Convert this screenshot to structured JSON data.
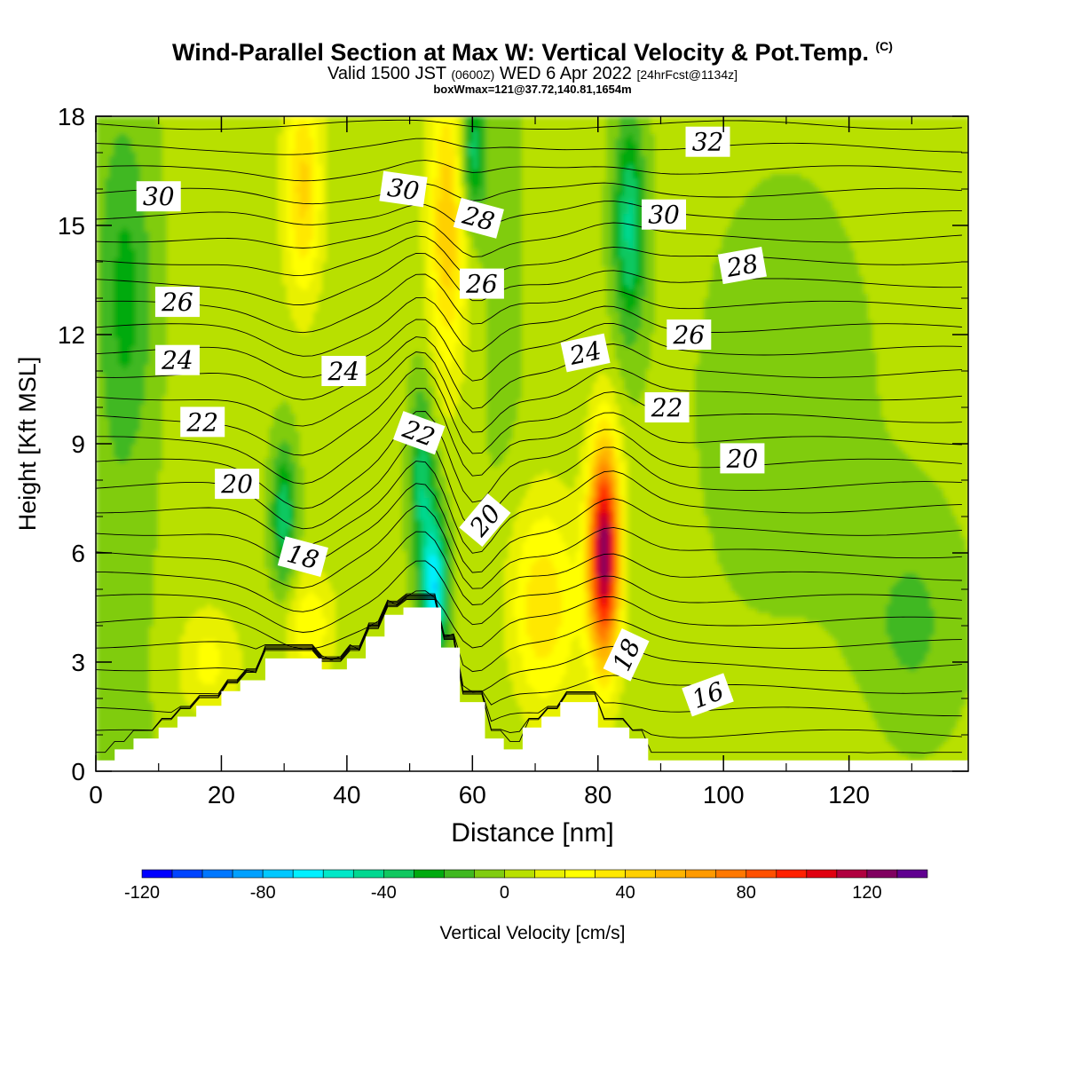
{
  "title": {
    "main": "Wind-Parallel Section at Max W: Vertical Velocity & Pot.Temp.",
    "copyright": "(C)",
    "valid_prefix": "Valid 1500 JST",
    "utc": "(0600Z)",
    "valid_date": "WED 6 Apr 2022",
    "fcst": "[24hrFcst@1134z]",
    "box": "boxWmax=121@37.72,140.81,1654m"
  },
  "chart_data": {
    "type": "heatmap",
    "xlabel": "Distance [nm]",
    "ylabel": "Height [Kft MSL]",
    "xlim": [
      0,
      139
    ],
    "ylim": [
      0,
      18
    ],
    "x_ticks": [
      "0",
      "20",
      "40",
      "60",
      "80",
      "100",
      "120"
    ],
    "y_ticks": [
      "0",
      "3",
      "6",
      "9",
      "12",
      "15",
      "18"
    ],
    "grid": false,
    "colorbar": {
      "label": "Vertical Velocity [cm/s]",
      "placement": "bottom",
      "range": [
        -120,
        130
      ],
      "step": 10,
      "tick_labels": [
        "-120",
        "-80",
        "-40",
        "0",
        "40",
        "80",
        "120"
      ],
      "colors": [
        "#0000ff",
        "#0044ff",
        "#0077ff",
        "#00a0ff",
        "#00c8ff",
        "#00f0ff",
        "#00e8c8",
        "#00d890",
        "#10c860",
        "#00aa10",
        "#40b820",
        "#80cc10",
        "#b8e000",
        "#e8f000",
        "#ffff00",
        "#ffe800",
        "#ffd000",
        "#ffb400",
        "#ff9a00",
        "#ff7800",
        "#ff5000",
        "#ff2000",
        "#e00010",
        "#b00040",
        "#800060",
        "#600090"
      ]
    },
    "terrain_profile": {
      "distance_nm": [
        0,
        3,
        6,
        10,
        13,
        16,
        20,
        23,
        27,
        30,
        33,
        36,
        40,
        43,
        46,
        49,
        52,
        55,
        58,
        59,
        62,
        65,
        68,
        71,
        74,
        77,
        80,
        82,
        85,
        88,
        139
      ],
      "height_kft": [
        0.3,
        0.6,
        0.9,
        1.2,
        1.5,
        1.8,
        2.2,
        2.5,
        3.1,
        3.1,
        3.1,
        2.8,
        3.1,
        3.7,
        4.3,
        4.5,
        4.5,
        3.4,
        1.9,
        1.9,
        0.9,
        0.6,
        1.2,
        1.5,
        1.9,
        1.9,
        1.2,
        1.2,
        0.9,
        0.3,
        0.3
      ]
    },
    "vertical_velocity_features": [
      {
        "kind": "updraft",
        "x_nm": 81,
        "y_kft": 6,
        "peak_cms": 121,
        "width_nm": 2.5,
        "depth_kft": 3
      },
      {
        "kind": "updraft",
        "x_nm": 71,
        "y_kft": 4.5,
        "peak_cms": 35,
        "width_nm": 6,
        "depth_kft": 3
      },
      {
        "kind": "updraft",
        "x_nm": 56,
        "y_kft": 15,
        "peak_cms": 45,
        "width_nm": 3,
        "depth_kft": 4
      },
      {
        "kind": "updraft",
        "x_nm": 33,
        "y_kft": 16,
        "peak_cms": 40,
        "width_nm": 3,
        "depth_kft": 3
      },
      {
        "kind": "updraft",
        "x_nm": 34,
        "y_kft": 4,
        "peak_cms": 25,
        "width_nm": 4,
        "depth_kft": 1.5
      },
      {
        "kind": "updraft",
        "x_nm": 18,
        "y_kft": 3,
        "peak_cms": 20,
        "width_nm": 5,
        "depth_kft": 1.5
      },
      {
        "kind": "downdraft",
        "x_nm": 54,
        "y_kft": 5,
        "peak_cms": -70,
        "width_nm": 2,
        "depth_kft": 2
      },
      {
        "kind": "downdraft",
        "x_nm": 52,
        "y_kft": 8,
        "peak_cms": -40,
        "width_nm": 2,
        "depth_kft": 2.5
      },
      {
        "kind": "downdraft",
        "x_nm": 85,
        "y_kft": 15,
        "peak_cms": -45,
        "width_nm": 2.5,
        "depth_kft": 3
      },
      {
        "kind": "downdraft",
        "x_nm": 60,
        "y_kft": 17,
        "peak_cms": -40,
        "width_nm": 2,
        "depth_kft": 2
      },
      {
        "kind": "downdraft",
        "x_nm": 30,
        "y_kft": 7,
        "peak_cms": -40,
        "width_nm": 2,
        "depth_kft": 2
      },
      {
        "kind": "downdraft",
        "x_nm": 5,
        "y_kft": 13,
        "peak_cms": -20,
        "width_nm": 4,
        "depth_kft": 4
      },
      {
        "kind": "downdraft",
        "x_nm": 130,
        "y_kft": 4,
        "peak_cms": -15,
        "width_nm": 8,
        "depth_kft": 3
      }
    ],
    "theta_labels": [
      {
        "text": "30",
        "x_nm": 10,
        "y_kft": 15.8,
        "rot": 0
      },
      {
        "text": "26",
        "x_nm": 13,
        "y_kft": 12.9,
        "rot": 0
      },
      {
        "text": "24",
        "x_nm": 13,
        "y_kft": 11.3,
        "rot": 0
      },
      {
        "text": "22",
        "x_nm": 17,
        "y_kft": 9.6,
        "rot": 0
      },
      {
        "text": "20",
        "x_nm": 22.5,
        "y_kft": 7.9,
        "rot": 0
      },
      {
        "text": "18",
        "x_nm": 33,
        "y_kft": 5.9,
        "rot": 15
      },
      {
        "text": "24",
        "x_nm": 39.5,
        "y_kft": 11.0,
        "rot": 0
      },
      {
        "text": "30",
        "x_nm": 49,
        "y_kft": 16.0,
        "rot": 8
      },
      {
        "text": "28",
        "x_nm": 61,
        "y_kft": 15.2,
        "rot": 15
      },
      {
        "text": "26",
        "x_nm": 61.5,
        "y_kft": 13.4,
        "rot": 0
      },
      {
        "text": "22",
        "x_nm": 51.5,
        "y_kft": 9.3,
        "rot": 20
      },
      {
        "text": "20",
        "x_nm": 62,
        "y_kft": 6.9,
        "rot": -50
      },
      {
        "text": "24",
        "x_nm": 78,
        "y_kft": 11.5,
        "rot": -12
      },
      {
        "text": "32",
        "x_nm": 97.5,
        "y_kft": 17.3,
        "rot": 0
      },
      {
        "text": "30",
        "x_nm": 90.5,
        "y_kft": 15.3,
        "rot": 0
      },
      {
        "text": "28",
        "x_nm": 103,
        "y_kft": 13.9,
        "rot": -10
      },
      {
        "text": "26",
        "x_nm": 94.5,
        "y_kft": 12.0,
        "rot": 0
      },
      {
        "text": "22",
        "x_nm": 91,
        "y_kft": 10.0,
        "rot": 0
      },
      {
        "text": "20",
        "x_nm": 103,
        "y_kft": 8.6,
        "rot": 0
      },
      {
        "text": "18",
        "x_nm": 84.5,
        "y_kft": 3.2,
        "rot": -65
      },
      {
        "text": "16",
        "x_nm": 97.5,
        "y_kft": 2.1,
        "rot": -20
      }
    ]
  }
}
